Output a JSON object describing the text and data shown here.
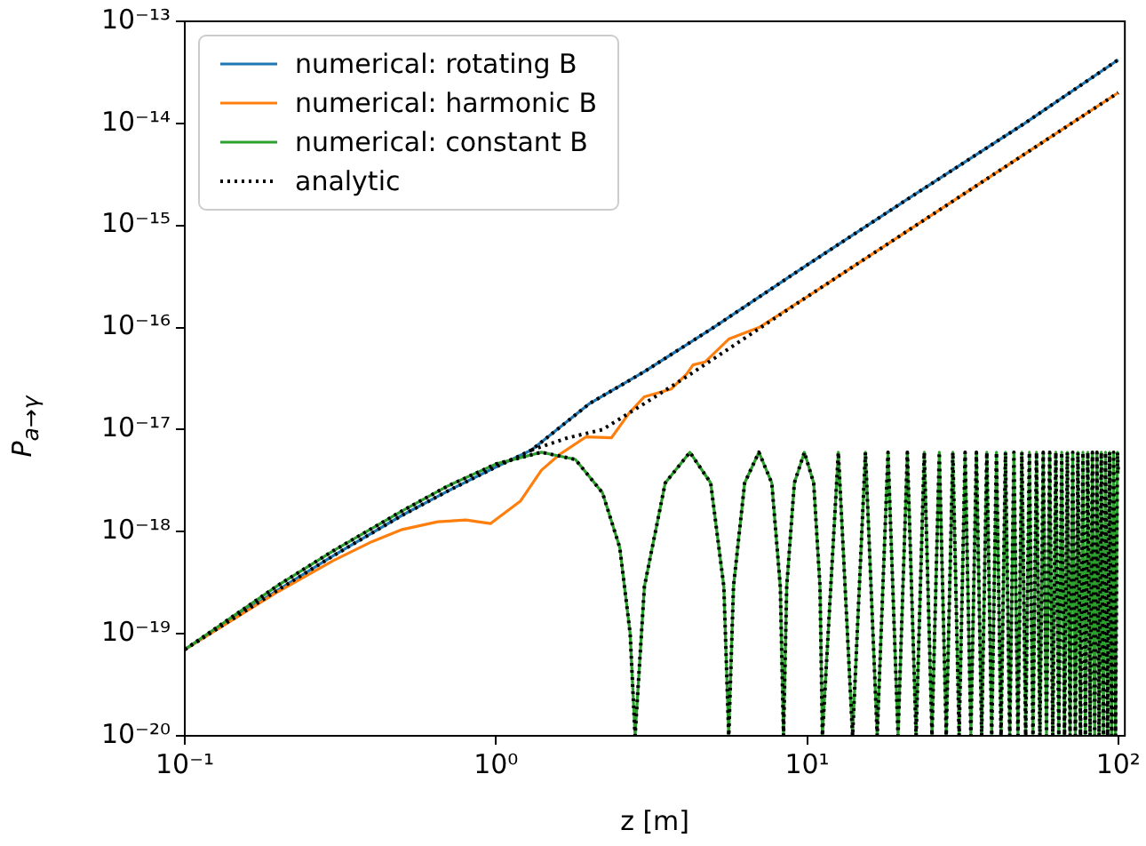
{
  "chart_data": {
    "type": "line",
    "xlabel": "z [m]",
    "ylabel": "P$_{a→γ}$",
    "log": "xy",
    "grid": false,
    "legend": "top left",
    "marker": "none",
    "xlim": [
      0.1,
      105
    ],
    "ylim": [
      1e-20,
      1e-13
    ],
    "xticks": [
      {
        "value": 0.1,
        "label": "10⁻¹"
      },
      {
        "value": 1,
        "label": "10⁰"
      },
      {
        "value": 10,
        "label": "10¹"
      },
      {
        "value": 100,
        "label": "10²"
      }
    ],
    "yticks": [
      {
        "value": 1e-20,
        "label": "10⁻²⁰"
      },
      {
        "value": 1e-19,
        "label": "10⁻¹⁹"
      },
      {
        "value": 1e-18,
        "label": "10⁻¹⁸"
      },
      {
        "value": 1e-17,
        "label": "10⁻¹⁷"
      },
      {
        "value": 1e-16,
        "label": "10⁻¹⁶"
      },
      {
        "value": 1e-15,
        "label": "10⁻¹⁵"
      },
      {
        "value": 1e-14,
        "label": "10⁻¹⁴"
      },
      {
        "value": 1e-13,
        "label": "10⁻¹³"
      }
    ],
    "series": [
      {
        "name": "numerical: rotating B",
        "color": "#1f77b4",
        "line_style": "solid",
        "x": [
          0.1,
          0.2,
          0.3,
          0.5,
          0.7,
          1,
          1.3,
          2,
          3,
          5,
          10,
          20,
          50,
          100
        ],
        "values": [
          7e-20,
          2.7e-19,
          5.8e-19,
          1.45e-18,
          2.5e-18,
          4.3e-18,
          6.3e-18,
          1.8e-17,
          3.7e-17,
          1e-16,
          4.1e-16,
          1.64e-15,
          1e-14,
          4.2e-14
        ]
      },
      {
        "name": "numerical: harmonic B",
        "color": "#ff7f0e",
        "line_style": "solid",
        "x": [
          0.1,
          0.2,
          0.3,
          0.4,
          0.5,
          0.65,
          0.8,
          0.96,
          1.2,
          1.4,
          1.6,
          1.95,
          2.35,
          2.68,
          3.0,
          3.5,
          3.66,
          4.1,
          4.3,
          4.7,
          5.6,
          7,
          10,
          20,
          50,
          100
        ],
        "values": [
          7e-20,
          2.6e-19,
          5.2e-19,
          8e-19,
          1.05e-18,
          1.25e-18,
          1.3e-18,
          1.2e-18,
          2e-18,
          4e-18,
          5.7e-18,
          8.5e-18,
          8.3e-18,
          1.45e-17,
          2.1e-17,
          2.4e-17,
          2.5e-17,
          3.5e-17,
          4.3e-17,
          4.6e-17,
          7.7e-17,
          1e-16,
          2e-16,
          8e-16,
          5e-15,
          2e-14
        ]
      },
      {
        "name": "numerical: constant B",
        "color": "#2ca02c",
        "line_style": "solid",
        "x": [
          0.1,
          0.2,
          0.3,
          0.5,
          0.7,
          1.0,
          1.4,
          1.8,
          2.2,
          2.5,
          2.7,
          2.8,
          3.0,
          3.5,
          4.2,
          4.9,
          5.4,
          5.6,
          5.8,
          6.3,
          7.0,
          7.7,
          8.2,
          8.4,
          8.6,
          9.1,
          9.8,
          10.5,
          11.0,
          11.2,
          12.6,
          14.0,
          15.4,
          16.8,
          18.2,
          19.6,
          21.0,
          22.4,
          23.8,
          25.2,
          26.6,
          28.0,
          29.4,
          30.8,
          32.2,
          33.6,
          35.0,
          36.4,
          37.8,
          39.2,
          40.6,
          42.0,
          43.4,
          44.8,
          46.2,
          47.6,
          49.0,
          50.4,
          51.8,
          53.2,
          54.6,
          56.0,
          57.4,
          58.8,
          60.2,
          61.6,
          63.0,
          64.4,
          65.8,
          67.2,
          68.6,
          70.0,
          71.4,
          72.8,
          74.2,
          75.6,
          77.0,
          78.4,
          79.8,
          81.2,
          82.6,
          84.0,
          85.4,
          86.8,
          88.2,
          89.6,
          91.0,
          92.4,
          93.8,
          95.2,
          96.6,
          98.0,
          99.4,
          100
        ],
        "values": [
          7e-20,
          3e-19,
          6.5e-19,
          1.6e-18,
          2.8e-18,
          4.6e-18,
          6e-18,
          5.1e-18,
          2.4e-18,
          7e-19,
          1e-19,
          1e-20,
          2.9e-19,
          3e-18,
          6e-18,
          3e-18,
          2.9e-19,
          1e-20,
          2.9e-19,
          3e-18,
          6e-18,
          3e-18,
          2.9e-19,
          1e-20,
          2.9e-19,
          3e-18,
          6e-18,
          3e-18,
          2.9e-19,
          1e-20,
          6e-18,
          1e-20,
          6e-18,
          1e-20,
          6e-18,
          1e-20,
          6e-18,
          1e-20,
          6e-18,
          1e-20,
          6e-18,
          1e-20,
          6e-18,
          1e-20,
          6e-18,
          1e-20,
          6e-18,
          1e-20,
          6e-18,
          1e-20,
          6e-18,
          1e-20,
          6e-18,
          1e-20,
          6e-18,
          1e-20,
          6e-18,
          1e-20,
          6e-18,
          1e-20,
          6e-18,
          1e-20,
          6e-18,
          1e-20,
          6e-18,
          1e-20,
          6e-18,
          1e-20,
          6e-18,
          1e-20,
          6e-18,
          1e-20,
          6e-18,
          1e-20,
          6e-18,
          1e-20,
          6e-18,
          1e-20,
          6e-18,
          1e-20,
          6e-18,
          1e-20,
          6e-18,
          1e-20,
          6e-18,
          1e-20,
          6e-18,
          1e-20,
          6e-18,
          1e-20,
          6e-18,
          1e-20,
          6e-18,
          3.7e-18
        ]
      },
      {
        "name": "analytic",
        "color": "#000000",
        "line_style": "dotted",
        "x": [
          0.1,
          0.2,
          0.3,
          0.5,
          0.7,
          1,
          1.3,
          2,
          3,
          5,
          10,
          20,
          50,
          100
        ],
        "values": [
          7e-20,
          2.7e-19,
          5.8e-19,
          1.45e-18,
          2.5e-18,
          4.3e-18,
          6.3e-18,
          1.8e-17,
          3.7e-17,
          1e-16,
          4.1e-16,
          1.64e-15,
          1e-14,
          4.2e-14
        ]
      },
      {
        "color": "#000000",
        "line_style": "dotted",
        "x": [
          1.3,
          1.7,
          2.2,
          3,
          4.1,
          10,
          20,
          50,
          100
        ],
        "values": [
          6.3e-18,
          8.3e-18,
          1e-17,
          1.8e-17,
          3.3e-17,
          2e-16,
          8e-16,
          5e-15,
          2e-14
        ]
      },
      {
        "color": "#000000",
        "line_style": "dotted",
        "x": [
          0.1,
          0.2,
          0.3,
          0.5,
          0.7,
          1.0,
          1.4,
          1.8,
          2.2,
          2.5,
          2.7,
          2.8,
          3.0,
          3.5,
          4.2,
          4.9,
          5.4,
          5.6,
          5.8,
          6.3,
          7.0,
          7.7,
          8.2,
          8.4,
          8.6,
          9.1,
          9.8,
          10.5,
          11.0,
          11.2,
          12.6,
          14.0,
          15.4,
          16.8,
          18.2,
          19.6,
          21.0,
          22.4,
          23.8,
          25.2,
          26.6,
          28.0,
          29.4,
          30.8,
          32.2,
          33.6,
          35.0,
          36.4,
          37.8,
          39.2,
          40.6,
          42.0,
          43.4,
          44.8,
          46.2,
          47.6,
          49.0,
          50.4,
          51.8,
          53.2,
          54.6,
          56.0,
          57.4,
          58.8,
          60.2,
          61.6,
          63.0,
          64.4,
          65.8,
          67.2,
          68.6,
          70.0,
          71.4,
          72.8,
          74.2,
          75.6,
          77.0,
          78.4,
          79.8,
          81.2,
          82.6,
          84.0,
          85.4,
          86.8,
          88.2,
          89.6,
          91.0,
          92.4,
          93.8,
          95.2,
          96.6,
          98.0,
          99.4,
          100
        ],
        "values": [
          7e-20,
          3e-19,
          6.5e-19,
          1.6e-18,
          2.8e-18,
          4.6e-18,
          6e-18,
          5.1e-18,
          2.4e-18,
          7e-19,
          1e-19,
          1e-20,
          2.9e-19,
          3e-18,
          6e-18,
          3e-18,
          2.9e-19,
          1e-20,
          2.9e-19,
          3e-18,
          6e-18,
          3e-18,
          2.9e-19,
          1e-20,
          2.9e-19,
          3e-18,
          6e-18,
          3e-18,
          2.9e-19,
          1e-20,
          6e-18,
          1e-20,
          6e-18,
          1e-20,
          6e-18,
          1e-20,
          6e-18,
          1e-20,
          6e-18,
          1e-20,
          6e-18,
          1e-20,
          6e-18,
          1e-20,
          6e-18,
          1e-20,
          6e-18,
          1e-20,
          6e-18,
          1e-20,
          6e-18,
          1e-20,
          6e-18,
          1e-20,
          6e-18,
          1e-20,
          6e-18,
          1e-20,
          6e-18,
          1e-20,
          6e-18,
          1e-20,
          6e-18,
          1e-20,
          6e-18,
          1e-20,
          6e-18,
          1e-20,
          6e-18,
          1e-20,
          6e-18,
          1e-20,
          6e-18,
          1e-20,
          6e-18,
          1e-20,
          6e-18,
          1e-20,
          6e-18,
          1e-20,
          6e-18,
          1e-20,
          6e-18,
          1e-20,
          6e-18,
          1e-20,
          6e-18,
          1e-20,
          6e-18,
          1e-20,
          6e-18,
          1e-20,
          6e-18,
          3.7e-18
        ]
      }
    ]
  }
}
